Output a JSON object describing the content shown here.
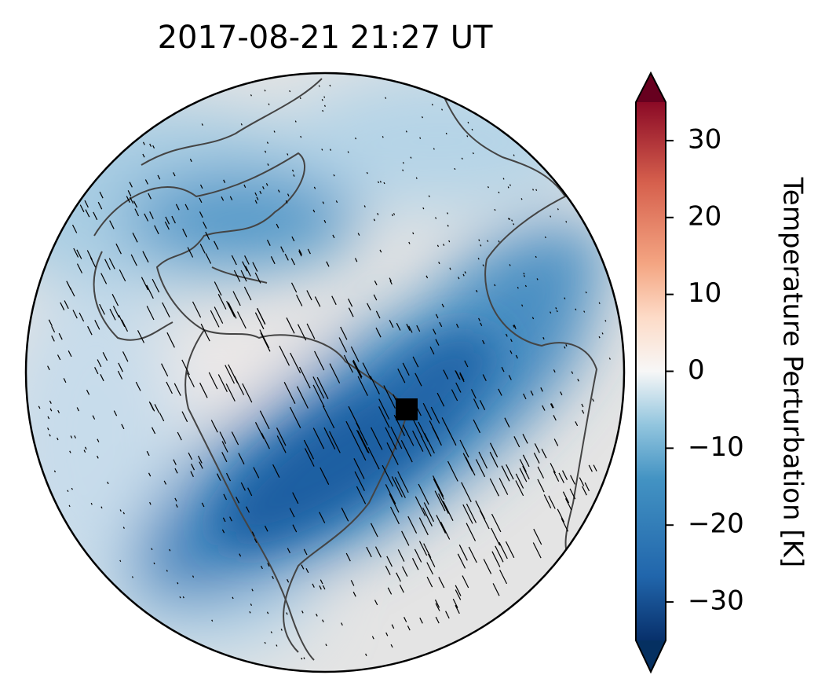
{
  "title": "2017-08-21  21:27 UT",
  "colorbar": {
    "label": "Temperature Perturbation [K]",
    "lim": [
      -35,
      35
    ],
    "extend": "both",
    "ticks": [
      {
        "value": -30,
        "label": "−30"
      },
      {
        "value": -20,
        "label": "−20"
      },
      {
        "value": -10,
        "label": "−10"
      },
      0,
      10,
      20,
      30
    ]
  }
}
